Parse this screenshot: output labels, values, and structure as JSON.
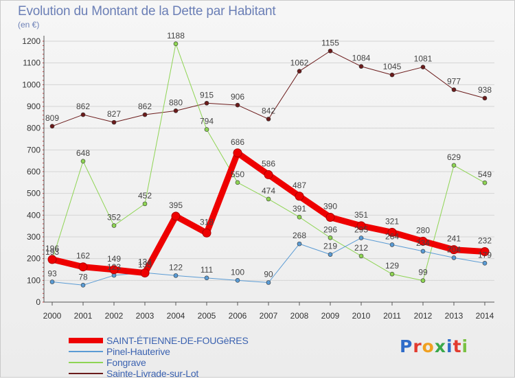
{
  "title": "Evolution du Montant de la Dette par Habitant",
  "subtitle": "(en €)",
  "logo": {
    "text": "Proxiti",
    "letters": [
      {
        "ch": "P",
        "color": "#2f6cc9"
      },
      {
        "ch": "r",
        "color": "#e23b2f"
      },
      {
        "ch": "o",
        "color": "#f0a020"
      },
      {
        "ch": "x",
        "color": "#3aa84a"
      },
      {
        "ch": "i",
        "color": "#2f6cc9"
      },
      {
        "ch": "t",
        "color": "#e23b2f"
      },
      {
        "ch": "i",
        "color": "#7ac143"
      }
    ]
  },
  "chart_data": {
    "type": "line",
    "title": "Evolution du Montant de la Dette par Habitant",
    "subtitle": "(en €)",
    "xlabel": "",
    "ylabel": "",
    "ylim": [
      0,
      1200
    ],
    "yticks": [
      0,
      100,
      200,
      300,
      400,
      500,
      600,
      700,
      800,
      900,
      1000,
      1100,
      1200
    ],
    "grid": true,
    "legend_position": "bottom-left",
    "x": [
      "2000",
      "2001",
      "2002",
      "2003",
      "2004",
      "2005",
      "2006",
      "2007",
      "2008",
      "2009",
      "2010",
      "2011",
      "2012",
      "2013",
      "2014"
    ],
    "series": [
      {
        "name": "Sainte-Livrade-sur-Lot",
        "color": "#6b1b1b",
        "width": 1,
        "values": [
          809,
          862,
          827,
          862,
          880,
          915,
          906,
          842,
          1062,
          1155,
          1084,
          1045,
          1081,
          977,
          938
        ],
        "labels": [
          "809",
          "862",
          "827",
          "862",
          "880",
          "915",
          "906",
          "842",
          "1062",
          "1155",
          "1084",
          "1045",
          "1081",
          "977",
          "938"
        ]
      },
      {
        "name": "Fongrave",
        "color": "#8ed453",
        "width": 1,
        "values": [
          193,
          648,
          352,
          452,
          1188,
          794,
          550,
          474,
          391,
          296,
          212,
          129,
          99,
          629,
          549
        ],
        "labels": [
          "193",
          "648",
          "352",
          "452",
          "1188",
          "794",
          "550",
          "474",
          "391",
          "296",
          "212",
          "129",
          "99",
          "629",
          "549"
        ]
      },
      {
        "name": "Pinel-Hauterive",
        "color": "#5a9bd4",
        "width": 1,
        "values": [
          93,
          78,
          123,
          135,
          122,
          111,
          100,
          90,
          268,
          219,
          295,
          264,
          234,
          204,
          179
        ],
        "labels": [
          "93",
          "78",
          "123",
          "135",
          "122",
          "111",
          "100",
          "90",
          "268",
          "219",
          "295",
          "264",
          "234",
          "204",
          "179"
        ]
      },
      {
        "name": "SAINT-ÉTIENNE-DE-FOUGèRES",
        "color": "#ee0000",
        "width": 9,
        "values": [
          196,
          162,
          149,
          134,
          395,
          318,
          686,
          586,
          487,
          390,
          351,
          321,
          280,
          241,
          232
        ],
        "labels": [
          "196",
          "162",
          "149",
          "134",
          "395",
          "318",
          "686",
          "586",
          "487",
          "390",
          "351",
          "321",
          "280",
          "241",
          "232"
        ]
      }
    ]
  },
  "legend": [
    {
      "label": "SAINT-ÉTIENNE-DE-FOUGèRES",
      "color": "#ee0000",
      "thick": true
    },
    {
      "label": "Pinel-Hauterive",
      "color": "#5a9bd4",
      "thick": false
    },
    {
      "label": "Fongrave",
      "color": "#8ed453",
      "thick": false
    },
    {
      "label": "Sainte-Livrade-sur-Lot",
      "color": "#6b1b1b",
      "thick": false
    }
  ]
}
